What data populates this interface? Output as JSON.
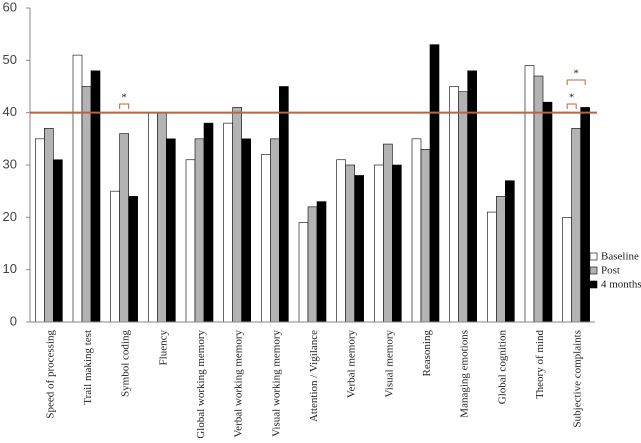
{
  "chart_data": {
    "type": "bar",
    "categories": [
      "Speed of processing",
      "Trail making test",
      "Symbol coding",
      "Fluency",
      "Global working memory",
      "Verbal working memory",
      "Visual working memory",
      "Attention / Vigilance",
      "Verbal memory",
      "Visual memory",
      "Reasoning",
      "Managing emotions",
      "Global cognition",
      "Theory of mind",
      "Subjective complaints"
    ],
    "series": [
      {
        "name": "Baseline",
        "color": "#ffffff",
        "values": [
          35,
          51,
          25,
          40,
          31,
          38,
          32,
          19,
          31,
          30,
          35,
          45,
          21,
          49,
          20
        ]
      },
      {
        "name": "Post",
        "color": "#b3b3b3",
        "values": [
          37,
          45,
          36,
          40,
          35,
          41,
          35,
          22,
          30,
          34,
          33,
          44,
          24,
          47,
          37
        ]
      },
      {
        "name": "4 months",
        "color": "#000000",
        "values": [
          31,
          48,
          24,
          35,
          38,
          35,
          45,
          23,
          28,
          30,
          53,
          48,
          27,
          42,
          41
        ]
      }
    ],
    "ylim": [
      0,
      60
    ],
    "yticks": [
      0,
      10,
      20,
      30,
      40,
      50,
      60
    ],
    "reference_line": 40,
    "reference_color": "#c0603e",
    "annotations": [
      "*",
      "*",
      "*"
    ],
    "legend": "right"
  }
}
